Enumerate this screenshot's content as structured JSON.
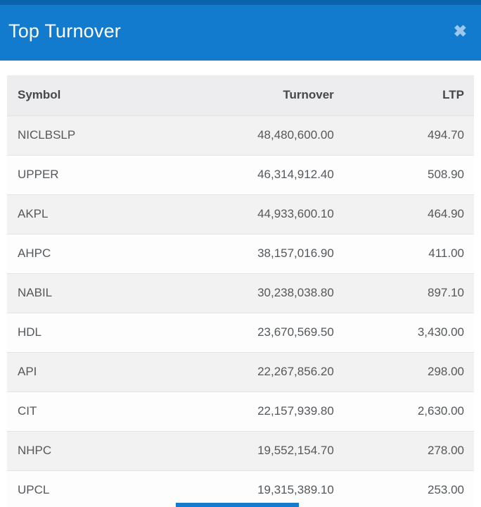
{
  "modal": {
    "title": "Top Turnover",
    "close_icon": "close"
  },
  "colors": {
    "header_blue": "#127bce",
    "header_top_strip": "#0b63ad",
    "close_icon_blue": "#9fc8ef",
    "row_stripe": "#f2f2f3",
    "header_row_bg": "#ededef",
    "text": "#55585a"
  },
  "table": {
    "columns": [
      "Symbol",
      "Turnover",
      "LTP"
    ],
    "rows": [
      {
        "symbol": "NICLBSLP",
        "turnover": "48,480,600.00",
        "ltp": "494.70"
      },
      {
        "symbol": "UPPER",
        "turnover": "46,314,912.40",
        "ltp": "508.90"
      },
      {
        "symbol": "AKPL",
        "turnover": "44,933,600.10",
        "ltp": "464.90"
      },
      {
        "symbol": "AHPC",
        "turnover": "38,157,016.90",
        "ltp": "411.00"
      },
      {
        "symbol": "NABIL",
        "turnover": "30,238,038.80",
        "ltp": "897.10"
      },
      {
        "symbol": "HDL",
        "turnover": "23,670,569.50",
        "ltp": "3,430.00"
      },
      {
        "symbol": "API",
        "turnover": "22,267,856.20",
        "ltp": "298.00"
      },
      {
        "symbol": "CIT",
        "turnover": "22,157,939.80",
        "ltp": "2,630.00"
      },
      {
        "symbol": "NHPC",
        "turnover": "19,552,154.70",
        "ltp": "278.00"
      },
      {
        "symbol": "UPCL",
        "turnover": "19,315,389.10",
        "ltp": "253.00"
      }
    ]
  }
}
